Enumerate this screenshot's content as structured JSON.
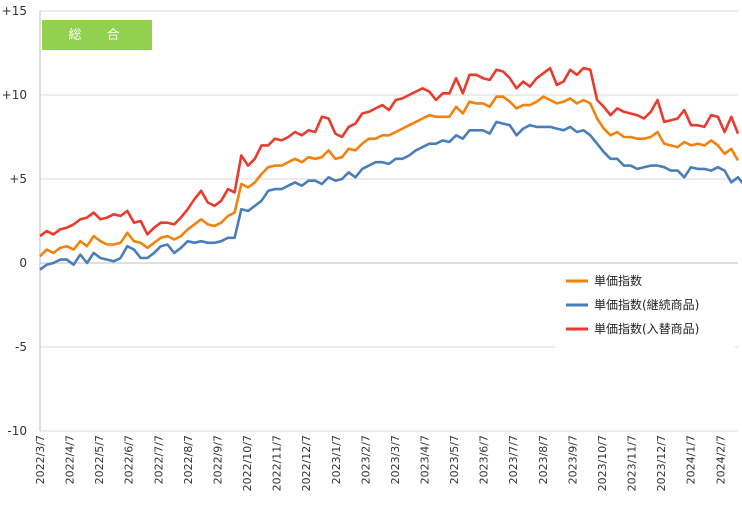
{
  "chart_data": {
    "type": "line",
    "title": "総　合",
    "title_bg_color": "#92d050",
    "ylim": [
      -10,
      15
    ],
    "yticks": [
      {
        "value": 15,
        "label": "+15"
      },
      {
        "value": 10,
        "label": "+10"
      },
      {
        "value": 5,
        "label": "+5"
      },
      {
        "value": 0,
        "label": "0"
      },
      {
        "value": -5,
        "label": "-5"
      },
      {
        "value": -10,
        "label": "-10"
      }
    ],
    "grid": "horizontal",
    "legend_position": "right, middle",
    "x_range": [
      "2022/3/7",
      "2024/3/4"
    ],
    "xtick_labels": [
      "2022/3/7",
      "2022/4/7",
      "2022/5/7",
      "2022/6/7",
      "2022/7/7",
      "2022/8/7",
      "2022/9/7",
      "2022/10/7",
      "2022/11/7",
      "2022/12/7",
      "2023/1/7",
      "2023/2/7",
      "2023/3/7",
      "2023/4/7",
      "2023/5/7",
      "2023/6/7",
      "2023/7/7",
      "2023/8/7",
      "2023/9/7",
      "2023/10/7",
      "2023/11/7",
      "2023/12/7",
      "2024/1/7",
      "2024/2/7"
    ],
    "series": [
      {
        "name": "単価指数",
        "color": "#f0820f",
        "values": [
          0.4,
          0.8,
          0.6,
          0.9,
          1.0,
          0.8,
          1.3,
          1.0,
          1.6,
          1.3,
          1.1,
          1.1,
          1.2,
          1.8,
          1.3,
          1.2,
          0.9,
          1.2,
          1.5,
          1.6,
          1.4,
          1.6,
          2.0,
          2.3,
          2.6,
          2.3,
          2.2,
          2.4,
          2.8,
          3.0,
          4.7,
          4.5,
          4.8,
          5.3,
          5.7,
          5.8,
          5.8,
          6.0,
          6.2,
          6.0,
          6.3,
          6.2,
          6.3,
          6.7,
          6.2,
          6.3,
          6.8,
          6.7,
          7.1,
          7.4,
          7.4,
          7.6,
          7.6,
          7.8,
          8.0,
          8.2,
          8.4,
          8.6,
          8.8,
          8.7,
          8.7,
          8.7,
          9.3,
          8.9,
          9.6,
          9.5,
          9.5,
          9.3,
          9.9,
          9.9,
          9.6,
          9.2,
          9.4,
          9.4,
          9.6,
          9.9,
          9.7,
          9.5,
          9.6,
          9.8,
          9.5,
          9.7,
          9.5,
          8.6,
          8.0,
          7.6,
          7.8,
          7.5,
          7.5,
          7.4,
          7.4,
          7.5,
          7.8,
          7.1,
          7.0,
          6.9,
          7.2,
          7.0,
          7.1,
          7.0,
          7.3,
          7.0,
          6.5,
          6.8,
          6.1
        ]
      },
      {
        "name": "単価指数(継続商品)",
        "color": "#4a7ebb",
        "values": [
          -0.4,
          -0.1,
          0.0,
          0.2,
          0.2,
          -0.1,
          0.5,
          0.0,
          0.6,
          0.3,
          0.2,
          0.1,
          0.3,
          1.0,
          0.8,
          0.3,
          0.3,
          0.6,
          1.0,
          1.1,
          0.6,
          0.9,
          1.3,
          1.2,
          1.3,
          1.2,
          1.2,
          1.3,
          1.5,
          1.5,
          3.2,
          3.1,
          3.4,
          3.7,
          4.3,
          4.4,
          4.4,
          4.6,
          4.8,
          4.6,
          4.9,
          4.9,
          4.7,
          5.1,
          4.9,
          5.0,
          5.4,
          5.1,
          5.6,
          5.8,
          6.0,
          6.0,
          5.9,
          6.2,
          6.2,
          6.4,
          6.7,
          6.9,
          7.1,
          7.1,
          7.3,
          7.2,
          7.6,
          7.4,
          7.9,
          7.9,
          7.9,
          7.7,
          8.4,
          8.3,
          8.2,
          7.6,
          8.0,
          8.2,
          8.1,
          8.1,
          8.1,
          8.0,
          7.9,
          8.1,
          7.8,
          7.9,
          7.6,
          7.1,
          6.6,
          6.2,
          6.2,
          5.8,
          5.8,
          5.6,
          5.7,
          5.8,
          5.8,
          5.7,
          5.5,
          5.5,
          5.1,
          5.7,
          5.6,
          5.6,
          5.5,
          5.7,
          5.5,
          4.8,
          5.1,
          4.6
        ]
      },
      {
        "name": "単価指数(入替商品)",
        "color": "#e83c2e",
        "values": [
          1.6,
          1.9,
          1.7,
          2.0,
          2.1,
          2.3,
          2.6,
          2.7,
          3.0,
          2.6,
          2.7,
          2.9,
          2.8,
          3.1,
          2.4,
          2.5,
          1.7,
          2.1,
          2.4,
          2.4,
          2.3,
          2.7,
          3.2,
          3.8,
          4.3,
          3.6,
          3.4,
          3.7,
          4.4,
          4.2,
          6.4,
          5.8,
          6.2,
          7.0,
          7.0,
          7.4,
          7.3,
          7.5,
          7.8,
          7.6,
          7.9,
          7.8,
          8.7,
          8.6,
          7.7,
          7.5,
          8.1,
          8.3,
          8.9,
          9.0,
          9.2,
          9.4,
          9.1,
          9.7,
          9.8,
          10.0,
          10.2,
          10.4,
          10.2,
          9.7,
          10.1,
          10.1,
          11.0,
          10.1,
          11.2,
          11.2,
          11.0,
          10.9,
          11.5,
          11.4,
          11.0,
          10.4,
          10.8,
          10.5,
          11.0,
          11.3,
          11.6,
          10.6,
          10.8,
          11.5,
          11.2,
          11.6,
          11.5,
          9.7,
          9.3,
          8.8,
          9.2,
          9.0,
          8.9,
          8.8,
          8.6,
          9.0,
          9.7,
          8.4,
          8.5,
          8.6,
          9.1,
          8.2,
          8.2,
          8.1,
          8.8,
          8.7,
          7.8,
          8.7,
          7.7
        ]
      }
    ]
  }
}
